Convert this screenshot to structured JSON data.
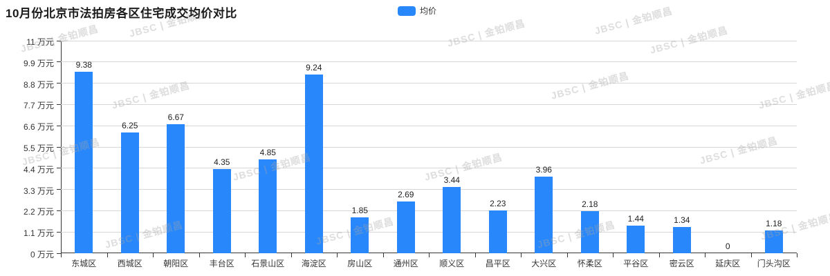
{
  "title": "10月份北京市法拍房各区住宅成交均价对比",
  "legend": {
    "label": "均价",
    "color": "#2787fb"
  },
  "watermark": {
    "text": "JBSC | 金铂顺昌"
  },
  "colors": {
    "bar": "#2787fb",
    "grid": "#d6d6d6",
    "axis": "#333333",
    "axis_label": "#333333",
    "value_label": "#1f1f1f",
    "title": "#1a1a1a"
  },
  "chart_data": {
    "type": "bar",
    "title": "10月份北京市法拍房各区住宅成交均价对比",
    "series_name": "均价",
    "categories": [
      "东城区",
      "西城区",
      "朝阳区",
      "丰台区",
      "石景山区",
      "海淀区",
      "房山区",
      "通州区",
      "顺义区",
      "昌平区",
      "大兴区",
      "怀柔区",
      "平谷区",
      "密云区",
      "延庆区",
      "门头沟区"
    ],
    "values": [
      9.38,
      6.25,
      6.67,
      4.35,
      4.85,
      9.24,
      1.85,
      2.69,
      3.44,
      2.23,
      3.96,
      2.18,
      1.44,
      1.34,
      0,
      1.18
    ],
    "value_labels": [
      "9.38",
      "6.25",
      "6.67",
      "4.35",
      "4.85",
      "9.24",
      "1.85",
      "2.69",
      "3.44",
      "2.23",
      "3.96",
      "2.18",
      "1.44",
      "1.34",
      "0",
      "1.18"
    ],
    "xlabel": "",
    "ylabel": "万元",
    "ylim": [
      0,
      11
    ],
    "y_ticks": [
      {
        "v": 0,
        "label": "0 万元"
      },
      {
        "v": 1.1,
        "label": "1.1 万元"
      },
      {
        "v": 2.2,
        "label": "2.2 万元"
      },
      {
        "v": 3.3,
        "label": "3.3 万元"
      },
      {
        "v": 4.4,
        "label": "4.4 万元"
      },
      {
        "v": 5.5,
        "label": "5.5 万元"
      },
      {
        "v": 6.6,
        "label": "6.6 万元"
      },
      {
        "v": 7.7,
        "label": "7.7 万元"
      },
      {
        "v": 8.8,
        "label": "8.8 万元"
      },
      {
        "v": 9.9,
        "label": "9.9 万元"
      },
      {
        "v": 11,
        "label": "11 万元"
      }
    ],
    "grid": true,
    "legend_position": "top-center"
  }
}
